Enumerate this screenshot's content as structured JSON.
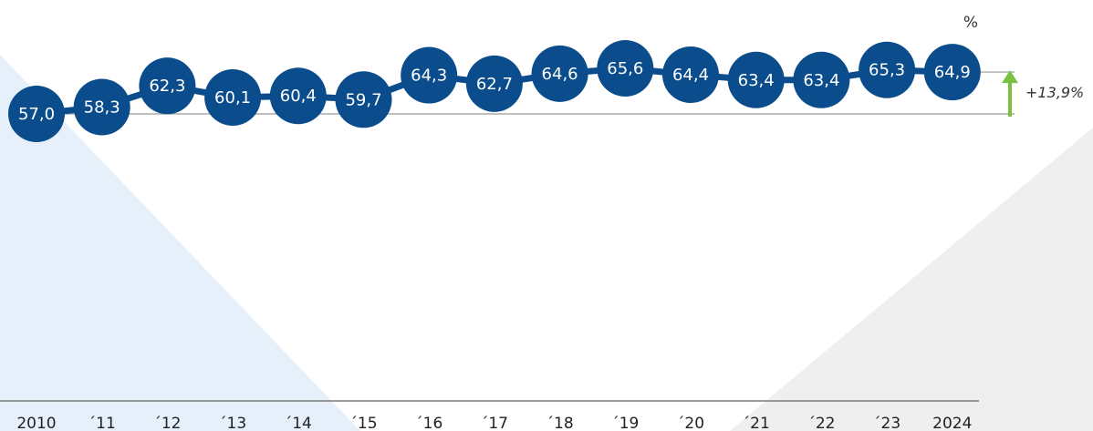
{
  "chart_data": {
    "type": "line",
    "unit_label": "%",
    "categories": [
      "2010",
      "´11",
      "´12",
      "´13",
      "´14",
      "´15",
      "´16",
      "´17",
      "´18",
      "´19",
      "´20",
      "´21",
      "´22",
      "´23",
      "2024"
    ],
    "series": [
      {
        "values": [
          57.0,
          58.3,
          62.3,
          60.1,
          60.4,
          59.7,
          64.3,
          62.7,
          64.6,
          65.6,
          64.4,
          63.4,
          63.4,
          65.3,
          64.9
        ],
        "labels": [
          "57,0",
          "58,3",
          "62,3",
          "60,1",
          "60,4",
          "59,7",
          "64,3",
          "62,7",
          "64,6",
          "65,6",
          "64,4",
          "63,4",
          "63,4",
          "65,3",
          "64,9"
        ]
      }
    ],
    "change": {
      "label": "+13,9%",
      "direction": "up",
      "from_value": 57.0,
      "to_value": 64.9
    },
    "grid": false,
    "legend": "none",
    "colors": {
      "marker": "#0b4d8c",
      "line": "#0b4d8c",
      "arrow": "#7ac142",
      "axis": "#999999",
      "bg_left": "#e6f0fa",
      "bg_right": "#efefef"
    }
  }
}
